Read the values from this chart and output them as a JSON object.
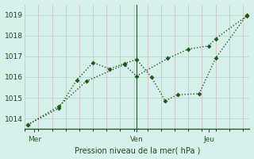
{
  "background_color": "#d8f0ec",
  "grid_color_major_h": "#b8d8d4",
  "grid_color_minor_v": "#d4b8b8",
  "line_color": "#1a5c1a",
  "markersize": 3,
  "linewidth": 1.0,
  "xlabel": "Pression niveau de la mer( hPa )",
  "xtick_labels": [
    "Mer",
    "Ven",
    "Jeu"
  ],
  "yticks": [
    1014,
    1015,
    1016,
    1017,
    1018,
    1019
  ],
  "ylim": [
    1013.5,
    1019.5
  ],
  "xlim": [
    0,
    16.5
  ],
  "series1_x": [
    0.2,
    2.5,
    3.8,
    5.0,
    6.2,
    7.3,
    8.2,
    9.3,
    10.3,
    11.2,
    12.8,
    14.0,
    16.3
  ],
  "series1_y": [
    1013.7,
    1014.5,
    1015.85,
    1016.7,
    1016.4,
    1016.65,
    1016.85,
    1016.0,
    1014.85,
    1015.15,
    1015.2,
    1016.9,
    1019.0
  ],
  "series2_x": [
    0.2,
    2.5,
    4.5,
    7.3,
    8.2,
    10.5,
    12.0,
    13.5,
    14.0,
    16.3
  ],
  "series2_y": [
    1013.7,
    1014.6,
    1015.8,
    1016.6,
    1016.05,
    1016.9,
    1017.35,
    1017.5,
    1017.85,
    1018.95
  ],
  "xtick_positions": [
    0.7,
    8.2,
    13.5
  ],
  "vline_x": 8.2,
  "vline_color": "#2a5c2a",
  "spine_color": "#2a5c2a"
}
